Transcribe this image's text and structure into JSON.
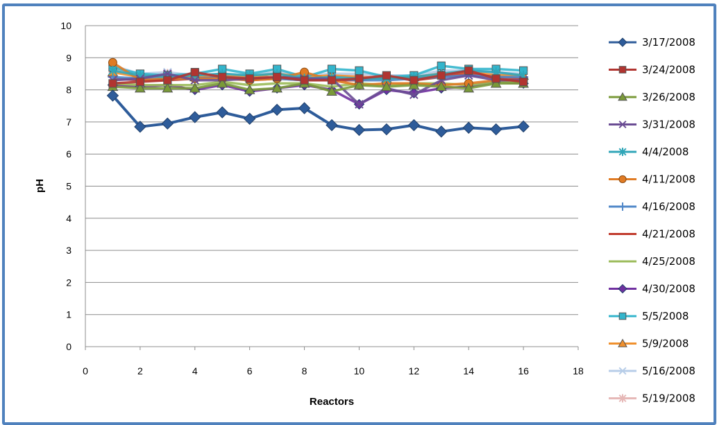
{
  "chart_data": {
    "type": "line",
    "xlabel": "Reactors",
    "ylabel": "pH",
    "xlim": [
      0,
      18
    ],
    "ylim": [
      0,
      10
    ],
    "xticks": [
      0,
      2,
      4,
      6,
      8,
      10,
      12,
      14,
      16,
      18
    ],
    "yticks": [
      0,
      1,
      2,
      3,
      4,
      5,
      6,
      7,
      8,
      9,
      10
    ],
    "grid": "horizontal",
    "legend_position": "right",
    "x": [
      1,
      2,
      3,
      4,
      5,
      6,
      7,
      8,
      9,
      10,
      11,
      12,
      13,
      14,
      15,
      16
    ],
    "series": [
      {
        "name": "3/17/2008",
        "color": "#2e5c9a",
        "marker": "diamond",
        "values": [
          7.82,
          6.85,
          6.95,
          7.15,
          7.3,
          7.1,
          7.38,
          7.43,
          6.9,
          6.75,
          6.77,
          6.9,
          6.7,
          6.82,
          6.77,
          6.86
        ]
      },
      {
        "name": "3/24/2008",
        "color": "#b13430",
        "marker": "square",
        "values": [
          8.2,
          8.25,
          8.3,
          8.55,
          8.4,
          8.35,
          8.4,
          8.3,
          8.3,
          8.35,
          8.45,
          8.3,
          8.45,
          8.6,
          8.35,
          8.25
        ]
      },
      {
        "name": "3/26/2008",
        "color": "#7a9a38",
        "marker": "triangle",
        "values": [
          8.1,
          8.05,
          8.05,
          8.05,
          8.2,
          8.0,
          8.05,
          8.2,
          7.95,
          8.15,
          8.1,
          8.15,
          8.1,
          8.05,
          8.2,
          8.2
        ]
      },
      {
        "name": "3/31/2008",
        "color": "#6a4c93",
        "marker": "x",
        "values": [
          8.3,
          8.35,
          8.5,
          8.3,
          8.3,
          8.35,
          8.4,
          8.35,
          8.35,
          7.55,
          8.05,
          7.85,
          8.3,
          8.45,
          8.3,
          8.3
        ]
      },
      {
        "name": "4/4/2008",
        "color": "#31a6b8",
        "marker": "star",
        "values": [
          8.6,
          8.45,
          8.4,
          8.45,
          8.5,
          8.45,
          8.5,
          8.35,
          8.4,
          8.35,
          8.35,
          8.4,
          8.5,
          8.6,
          8.55,
          8.45
        ]
      },
      {
        "name": "4/11/2008",
        "color": "#e07b24",
        "marker": "circle",
        "values": [
          8.85,
          8.3,
          8.35,
          8.35,
          8.35,
          8.3,
          8.35,
          8.55,
          8.3,
          8.15,
          8.2,
          8.2,
          8.15,
          8.2,
          8.3,
          8.3
        ]
      },
      {
        "name": "4/16/2008",
        "color": "#4f87c8",
        "marker": "plus",
        "values": [
          8.4,
          8.35,
          8.35,
          8.35,
          8.4,
          8.35,
          8.35,
          8.3,
          8.35,
          8.3,
          8.3,
          8.35,
          8.4,
          8.45,
          8.4,
          8.4
        ]
      },
      {
        "name": "4/21/2008",
        "color": "#c0392b",
        "marker": "none",
        "values": [
          8.35,
          8.3,
          8.3,
          8.35,
          8.4,
          8.3,
          8.35,
          8.3,
          8.3,
          8.3,
          8.4,
          8.3,
          8.4,
          8.5,
          8.4,
          8.35
        ]
      },
      {
        "name": "4/25/2008",
        "color": "#9bbb59",
        "marker": "none",
        "values": [
          8.2,
          8.15,
          8.15,
          8.15,
          8.25,
          8.15,
          8.2,
          8.2,
          8.1,
          8.2,
          8.15,
          8.2,
          8.2,
          8.15,
          8.25,
          8.25
        ]
      },
      {
        "name": "4/30/2008",
        "color": "#7030a0",
        "marker": "diamond",
        "values": [
          8.15,
          8.1,
          8.15,
          8.0,
          8.15,
          7.95,
          8.05,
          8.15,
          8.0,
          7.55,
          8.0,
          7.9,
          8.05,
          8.1,
          8.25,
          8.2
        ]
      },
      {
        "name": "5/5/2008",
        "color": "#33b5cc",
        "marker": "square",
        "values": [
          8.7,
          8.5,
          8.45,
          8.5,
          8.65,
          8.5,
          8.65,
          8.4,
          8.65,
          8.6,
          8.4,
          8.45,
          8.75,
          8.65,
          8.65,
          8.6
        ]
      },
      {
        "name": "5/9/2008",
        "color": "#f0902d",
        "marker": "triangle",
        "values": [
          8.55,
          8.4,
          8.45,
          8.4,
          8.45,
          8.4,
          8.5,
          8.4,
          8.45,
          8.4,
          8.35,
          8.4,
          8.5,
          8.55,
          8.45,
          8.45
        ]
      },
      {
        "name": "5/16/2008",
        "color": "#b7cde8",
        "marker": "x",
        "values": [
          8.75,
          8.5,
          8.55,
          8.45,
          8.5,
          8.45,
          8.55,
          8.45,
          8.5,
          8.5,
          8.45,
          8.45,
          8.6,
          8.6,
          8.55,
          8.5
        ]
      },
      {
        "name": "5/19/2008",
        "color": "#e6b8b7",
        "marker": "star",
        "values": [
          8.65,
          8.45,
          8.5,
          8.4,
          8.45,
          8.4,
          8.5,
          8.4,
          8.45,
          8.45,
          8.4,
          8.4,
          8.55,
          8.55,
          8.5,
          8.45
        ]
      }
    ]
  }
}
